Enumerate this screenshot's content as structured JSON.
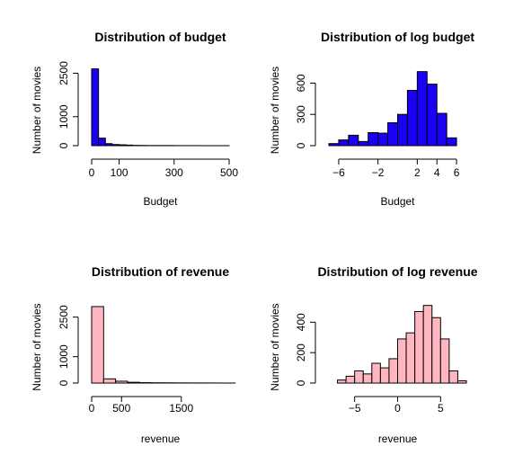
{
  "chart_data": [
    {
      "type": "bar",
      "title": "Distribution of budget",
      "xlabel": "Budget",
      "ylabel": "Number of movies",
      "fill": "#1a00f5",
      "xlim": [
        0,
        500
      ],
      "ylim": [
        0,
        2700
      ],
      "bins": [
        [
          0,
          25,
          2650
        ],
        [
          25,
          50,
          260
        ],
        [
          50,
          75,
          70
        ],
        [
          75,
          100,
          40
        ],
        [
          100,
          125,
          30
        ],
        [
          125,
          150,
          20
        ],
        [
          150,
          175,
          10
        ],
        [
          175,
          200,
          8
        ],
        [
          200,
          300,
          5
        ],
        [
          300,
          400,
          2
        ],
        [
          400,
          500,
          1
        ]
      ],
      "xticks": [
        0,
        100,
        300,
        500
      ],
      "xtick_labels": [
        "0",
        "100",
        "300",
        "500"
      ],
      "yticks": [
        0,
        1000,
        2500
      ],
      "ytick_labels": [
        "0",
        "1000",
        "2500"
      ]
    },
    {
      "type": "bar",
      "title": "Distribution of log budget",
      "xlabel": "Budget",
      "ylabel": "Number of movies",
      "fill": "#1a00f5",
      "xlim": [
        -7,
        7
      ],
      "ylim": [
        0,
        750
      ],
      "bins": [
        [
          -7,
          -6,
          20
        ],
        [
          -6,
          -5,
          55
        ],
        [
          -5,
          -4,
          100
        ],
        [
          -4,
          -3,
          40
        ],
        [
          -3,
          -2,
          125
        ],
        [
          -2,
          -1,
          120
        ],
        [
          -1,
          0,
          220
        ],
        [
          0,
          1,
          300
        ],
        [
          1,
          2,
          530
        ],
        [
          2,
          3,
          710
        ],
        [
          3,
          4,
          590
        ],
        [
          4,
          5,
          310
        ],
        [
          5,
          6,
          75
        ]
      ],
      "xticks": [
        -6,
        -2,
        2,
        4,
        6
      ],
      "xtick_labels": [
        "−6",
        "−2",
        "2",
        "4",
        "6"
      ],
      "yticks": [
        0,
        300,
        600
      ],
      "ytick_labels": [
        "0",
        "300",
        "600"
      ]
    },
    {
      "type": "bar",
      "title": "Distribution of revenue",
      "xlabel": "revenue",
      "ylabel": "Number of movies",
      "fill": "#ffb6c1",
      "xlim": [
        0,
        2300
      ],
      "ylim": [
        0,
        3000
      ],
      "bins": [
        [
          0,
          200,
          2900
        ],
        [
          200,
          400,
          160
        ],
        [
          400,
          600,
          70
        ],
        [
          600,
          800,
          30
        ],
        [
          800,
          1000,
          15
        ],
        [
          1000,
          1200,
          10
        ],
        [
          1200,
          1400,
          8
        ],
        [
          1400,
          1600,
          6
        ],
        [
          1600,
          1800,
          4
        ],
        [
          1800,
          2000,
          3
        ],
        [
          2000,
          2200,
          2
        ],
        [
          2200,
          2400,
          1
        ]
      ],
      "xticks": [
        0,
        500,
        1500
      ],
      "xtick_labels": [
        "0",
        "500",
        "1500"
      ],
      "yticks": [
        0,
        1000,
        2500
      ],
      "ytick_labels": [
        "0",
        "1000",
        "2500"
      ]
    },
    {
      "type": "bar",
      "title": "Distribution of log revenue",
      "xlabel": "revenue",
      "ylabel": "Number of movies",
      "fill": "#ffb6c1",
      "xlim": [
        -8,
        8
      ],
      "ylim": [
        0,
        520
      ],
      "bins": [
        [
          -7,
          -6,
          20
        ],
        [
          -6,
          -5,
          45
        ],
        [
          -5,
          -4,
          80
        ],
        [
          -4,
          -3,
          60
        ],
        [
          -3,
          -2,
          130
        ],
        [
          -2,
          -1,
          100
        ],
        [
          -1,
          0,
          160
        ],
        [
          0,
          1,
          290
        ],
        [
          1,
          2,
          330
        ],
        [
          2,
          3,
          470
        ],
        [
          3,
          4,
          510
        ],
        [
          4,
          5,
          430
        ],
        [
          5,
          6,
          290
        ],
        [
          6,
          7,
          80
        ],
        [
          7,
          8,
          15
        ]
      ],
      "xticks": [
        -5,
        0,
        5
      ],
      "xtick_labels": [
        "−5",
        "0",
        "5"
      ],
      "yticks": [
        0,
        200,
        400
      ],
      "ytick_labels": [
        "0",
        "200",
        "400"
      ]
    }
  ]
}
